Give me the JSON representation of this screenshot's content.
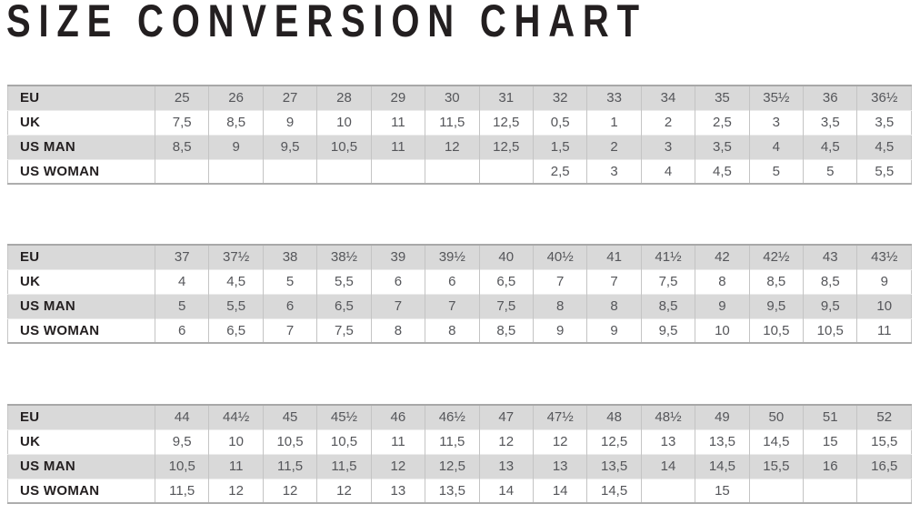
{
  "title": "SIZE CONVERSION CHART",
  "colors": {
    "title_text": "#231f20",
    "striped_row_bg": "#d9d9d9",
    "plain_row_bg": "#ffffff",
    "label_text": "#231f20",
    "value_text": "#55565a",
    "cell_border": "#c4c4c4",
    "table_edge_border": "#a8a8a8"
  },
  "tables": [
    {
      "name": "sizes-25-to-36half",
      "rows": [
        {
          "label": "EU",
          "values": [
            "25",
            "26",
            "27",
            "28",
            "29",
            "30",
            "31",
            "32",
            "33",
            "34",
            "35",
            "35½",
            "36",
            "36½"
          ]
        },
        {
          "label": "UK",
          "values": [
            "7,5",
            "8,5",
            "9",
            "10",
            "11",
            "11,5",
            "12,5",
            "0,5",
            "1",
            "2",
            "2,5",
            "3",
            "3,5",
            "3,5"
          ]
        },
        {
          "label": "US MAN",
          "values": [
            "8,5",
            "9",
            "9,5",
            "10,5",
            "11",
            "12",
            "12,5",
            "1,5",
            "2",
            "3",
            "3,5",
            "4",
            "4,5",
            "4,5"
          ]
        },
        {
          "label": "US WOMAN",
          "values": [
            "",
            "",
            "",
            "",
            "",
            "",
            "",
            "2,5",
            "3",
            "4",
            "4,5",
            "5",
            "5",
            "5,5"
          ]
        }
      ]
    },
    {
      "name": "sizes-37-to-43half",
      "rows": [
        {
          "label": "EU",
          "values": [
            "37",
            "37½",
            "38",
            "38½",
            "39",
            "39½",
            "40",
            "40½",
            "41",
            "41½",
            "42",
            "42½",
            "43",
            "43½"
          ]
        },
        {
          "label": "UK",
          "values": [
            "4",
            "4,5",
            "5",
            "5,5",
            "6",
            "6",
            "6,5",
            "7",
            "7",
            "7,5",
            "8",
            "8,5",
            "8,5",
            "9"
          ]
        },
        {
          "label": "US MAN",
          "values": [
            "5",
            "5,5",
            "6",
            "6,5",
            "7",
            "7",
            "7,5",
            "8",
            "8",
            "8,5",
            "9",
            "9,5",
            "9,5",
            "10"
          ]
        },
        {
          "label": "US WOMAN",
          "values": [
            "6",
            "6,5",
            "7",
            "7,5",
            "8",
            "8",
            "8,5",
            "9",
            "9",
            "9,5",
            "10",
            "10,5",
            "10,5",
            "11"
          ]
        }
      ]
    },
    {
      "name": "sizes-44-to-52",
      "rows": [
        {
          "label": "EU",
          "values": [
            "44",
            "44½",
            "45",
            "45½",
            "46",
            "46½",
            "47",
            "47½",
            "48",
            "48½",
            "49",
            "50",
            "51",
            "52"
          ]
        },
        {
          "label": "UK",
          "values": [
            "9,5",
            "10",
            "10,5",
            "10,5",
            "11",
            "11,5",
            "12",
            "12",
            "12,5",
            "13",
            "13,5",
            "14,5",
            "15",
            "15,5"
          ]
        },
        {
          "label": "US MAN",
          "values": [
            "10,5",
            "11",
            "11,5",
            "11,5",
            "12",
            "12,5",
            "13",
            "13",
            "13,5",
            "14",
            "14,5",
            "15,5",
            "16",
            "16,5"
          ]
        },
        {
          "label": "US WOMAN",
          "values": [
            "11,5",
            "12",
            "12",
            "12",
            "13",
            "13,5",
            "14",
            "14",
            "14,5",
            "",
            "15",
            "",
            "",
            ""
          ]
        }
      ]
    }
  ]
}
